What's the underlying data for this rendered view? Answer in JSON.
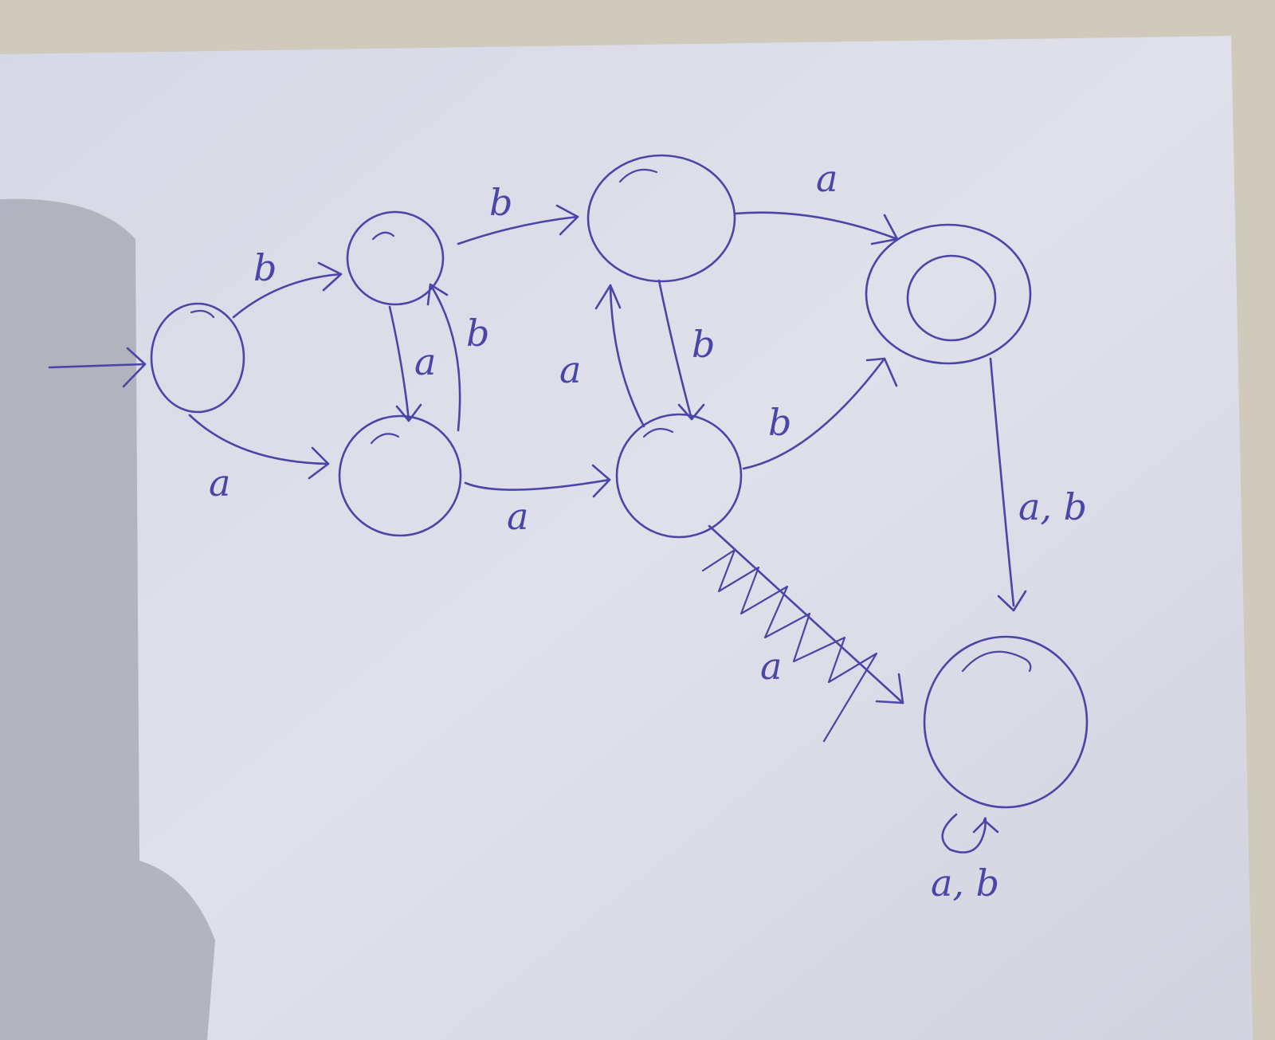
{
  "automaton": {
    "states": [
      {
        "id": "q0",
        "start": true,
        "accepting": false
      },
      {
        "id": "q1",
        "start": false,
        "accepting": false
      },
      {
        "id": "q2",
        "start": false,
        "accepting": false
      },
      {
        "id": "q3",
        "start": false,
        "accepting": false
      },
      {
        "id": "q4",
        "start": false,
        "accepting": false
      },
      {
        "id": "q5",
        "start": false,
        "accepting": true
      },
      {
        "id": "q6",
        "start": false,
        "accepting": false
      }
    ],
    "transitions": [
      {
        "from": "q0",
        "to": "q1",
        "label": "b"
      },
      {
        "from": "q0",
        "to": "q2",
        "label": "a"
      },
      {
        "from": "q1",
        "to": "q2",
        "label": "a"
      },
      {
        "from": "q2",
        "to": "q1",
        "label": "b"
      },
      {
        "from": "q1",
        "to": "q3",
        "label": "b"
      },
      {
        "from": "q2",
        "to": "q4",
        "label": "a"
      },
      {
        "from": "q4",
        "to": "q3",
        "label": "a"
      },
      {
        "from": "q3",
        "to": "q4",
        "label": "b"
      },
      {
        "from": "q3",
        "to": "q5",
        "label": "a"
      },
      {
        "from": "q4",
        "to": "q5",
        "label": "b"
      },
      {
        "from": "q4",
        "to": "q6",
        "label": "a"
      },
      {
        "from": "q5",
        "to": "q6",
        "label": "a, b"
      },
      {
        "from": "q6",
        "to": "q6",
        "label": "a, b"
      }
    ]
  },
  "colors": {
    "ink": "#4a45a6",
    "paper": "#dcdce8",
    "background": "#cfcabb"
  }
}
